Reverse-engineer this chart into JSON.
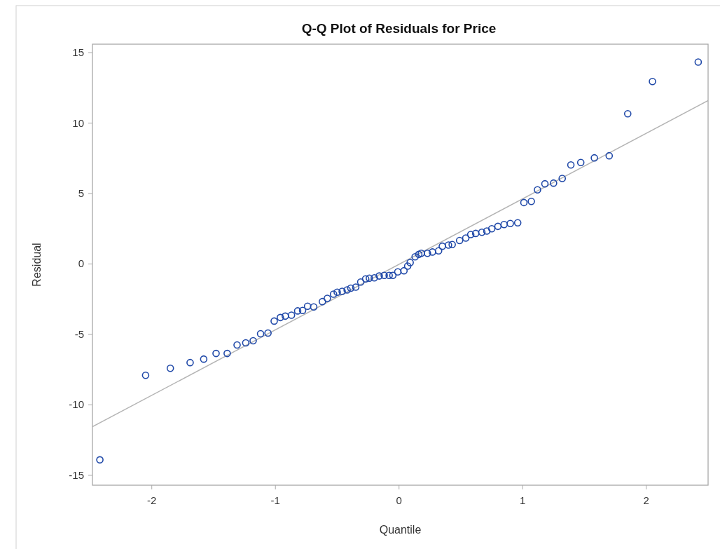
{
  "chart_data": {
    "type": "scatter",
    "title": "Q-Q Plot of Residuals for Price",
    "xlabel": "Quantile",
    "ylabel": "Residual",
    "xlim": [
      -2.48,
      2.5
    ],
    "ylim": [
      -15.7,
      15.6
    ],
    "xticks": [
      -2,
      -1,
      0,
      1,
      2
    ],
    "yticks": [
      -15,
      -10,
      -5,
      0,
      5,
      10,
      15
    ],
    "grid": false,
    "marker": "circle",
    "series": [
      {
        "color": "#1f48a8",
        "x": [
          -2.42,
          -2.05,
          -1.85,
          -1.69,
          -1.58,
          -1.48,
          -1.39,
          -1.31,
          -1.24,
          -1.18,
          -1.12,
          -1.06,
          -1.01,
          -0.96,
          -0.92,
          -0.87,
          -0.82,
          -0.78,
          -0.74,
          -0.69,
          -0.62,
          -0.58,
          -0.53,
          -0.5,
          -0.46,
          -0.42,
          -0.39,
          -0.35,
          -0.31,
          -0.27,
          -0.24,
          -0.2,
          -0.16,
          -0.12,
          -0.08,
          -0.05,
          -0.01,
          0.04,
          0.07,
          0.09,
          0.13,
          0.16,
          0.18,
          0.23,
          0.27,
          0.32,
          0.35,
          0.4,
          0.43,
          0.49,
          0.54,
          0.58,
          0.62,
          0.67,
          0.71,
          0.75,
          0.8,
          0.85,
          0.9,
          0.96,
          1.01,
          1.07,
          1.12,
          1.18,
          1.25,
          1.32,
          1.39,
          1.47,
          1.58,
          1.7,
          1.85,
          2.05,
          2.42
        ],
        "values": [
          -13.9,
          -7.9,
          -7.4,
          -7.0,
          -6.75,
          -6.35,
          -6.35,
          -5.75,
          -5.6,
          -5.45,
          -4.95,
          -4.9,
          -4.05,
          -3.8,
          -3.7,
          -3.63,
          -3.33,
          -3.3,
          -3.0,
          -3.05,
          -2.67,
          -2.44,
          -2.14,
          -2.0,
          -1.94,
          -1.84,
          -1.72,
          -1.64,
          -1.28,
          -1.06,
          -1.01,
          -0.98,
          -0.85,
          -0.81,
          -0.81,
          -0.81,
          -0.56,
          -0.48,
          -0.15,
          0.1,
          0.51,
          0.68,
          0.76,
          0.76,
          0.85,
          0.93,
          1.26,
          1.34,
          1.38,
          1.67,
          1.84,
          2.09,
          2.17,
          2.25,
          2.34,
          2.5,
          2.67,
          2.8,
          2.87,
          2.92,
          4.36,
          4.44,
          5.26,
          5.69,
          5.74,
          6.07,
          7.03,
          7.2,
          7.53,
          7.68,
          10.66,
          12.95,
          14.33
        ]
      },
      {
        "type": "line",
        "color": "#b4b4b4",
        "x": [
          -2.48,
          2.5
        ],
        "values": [
          -11.55,
          11.6
        ],
        "marker": "none"
      }
    ]
  }
}
